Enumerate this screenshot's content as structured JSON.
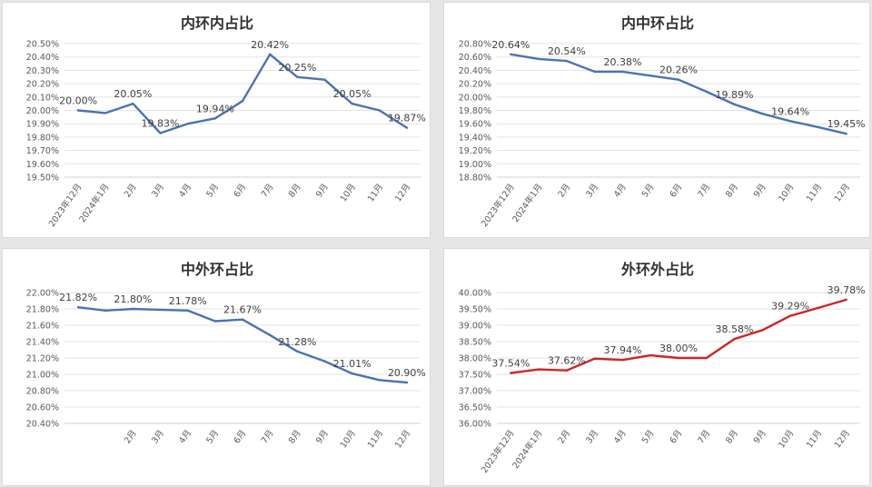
{
  "chart_data": [
    {
      "type": "line",
      "title": "内环内占比",
      "categories": [
        "2023年12月",
        "2024年1月",
        "2月",
        "3月",
        "4月",
        "5月",
        "6月",
        "7月",
        "8月",
        "9月",
        "10月",
        "11月",
        "12月"
      ],
      "values": [
        20.0,
        19.98,
        20.05,
        19.83,
        19.9,
        19.94,
        20.07,
        20.42,
        20.25,
        20.23,
        20.05,
        20.0,
        19.87
      ],
      "labels": [
        {
          "index": 0,
          "text": "20.00%"
        },
        {
          "index": 2,
          "text": "20.05%"
        },
        {
          "index": 3,
          "text": "19.83%"
        },
        {
          "index": 5,
          "text": "19.94%"
        },
        {
          "index": 7,
          "text": "20.42%"
        },
        {
          "index": 8,
          "text": "20.25%"
        },
        {
          "index": 10,
          "text": "20.05%"
        },
        {
          "index": 12,
          "text": "19.87%"
        }
      ],
      "ylim": [
        19.5,
        20.5
      ],
      "ystep": 0.1,
      "color": "#4a72b8",
      "rotate_x": true,
      "grid": true
    },
    {
      "type": "line",
      "title": "内中环占比",
      "categories": [
        "2023年12月",
        "2024年1月",
        "2月",
        "3月",
        "4月",
        "5月",
        "6月",
        "7月",
        "8月",
        "9月",
        "10月",
        "11月",
        "12月"
      ],
      "values": [
        20.64,
        20.57,
        20.54,
        20.38,
        20.38,
        20.32,
        20.26,
        20.08,
        19.89,
        19.75,
        19.64,
        19.55,
        19.45
      ],
      "labels": [
        {
          "index": 0,
          "text": "20.64%"
        },
        {
          "index": 2,
          "text": "20.54%"
        },
        {
          "index": 4,
          "text": "20.38%"
        },
        {
          "index": 6,
          "text": "20.26%"
        },
        {
          "index": 8,
          "text": "19.89%"
        },
        {
          "index": 10,
          "text": "19.64%"
        },
        {
          "index": 12,
          "text": "19.45%"
        }
      ],
      "ylim": [
        18.8,
        20.8
      ],
      "ystep": 0.2,
      "color": "#4a72b8",
      "rotate_x": true,
      "grid": true
    },
    {
      "type": "line",
      "title": "中外环占比",
      "categories": [
        "",
        "",
        "2月",
        "3月",
        "4月",
        "5月",
        "6月",
        "7月",
        "8月",
        "9月",
        "10月",
        "11月",
        "12月"
      ],
      "values": [
        21.82,
        21.78,
        21.8,
        21.79,
        21.78,
        21.65,
        21.67,
        21.48,
        21.28,
        21.16,
        21.01,
        20.93,
        20.9
      ],
      "labels": [
        {
          "index": 0,
          "text": "21.82%"
        },
        {
          "index": 2,
          "text": "21.80%"
        },
        {
          "index": 4,
          "text": "21.78%"
        },
        {
          "index": 6,
          "text": "21.67%"
        },
        {
          "index": 8,
          "text": "21.28%"
        },
        {
          "index": 10,
          "text": "21.01%"
        },
        {
          "index": 12,
          "text": "20.90%"
        }
      ],
      "ylim": [
        20.4,
        22.0
      ],
      "ystep": 0.2,
      "color": "#4a72b8",
      "rotate_x": true,
      "grid": true
    },
    {
      "type": "line",
      "title": "外环外占比",
      "categories": [
        "2023年12月",
        "2024年1月",
        "2月",
        "3月",
        "4月",
        "5月",
        "6月",
        "7月",
        "8月",
        "9月",
        "10月",
        "11月",
        "12月"
      ],
      "values": [
        37.54,
        37.65,
        37.62,
        37.98,
        37.94,
        38.08,
        38.0,
        38.0,
        38.58,
        38.85,
        39.29,
        39.53,
        39.78
      ],
      "labels": [
        {
          "index": 0,
          "text": "37.54%"
        },
        {
          "index": 2,
          "text": "37.62%"
        },
        {
          "index": 4,
          "text": "37.94%"
        },
        {
          "index": 6,
          "text": "38.00%"
        },
        {
          "index": 8,
          "text": "38.58%"
        },
        {
          "index": 10,
          "text": "39.29%"
        },
        {
          "index": 12,
          "text": "39.78%"
        }
      ],
      "ylim": [
        36.0,
        40.0
      ],
      "ystep": 0.5,
      "color": "#d42222",
      "rotate_x": true,
      "grid": true
    }
  ]
}
